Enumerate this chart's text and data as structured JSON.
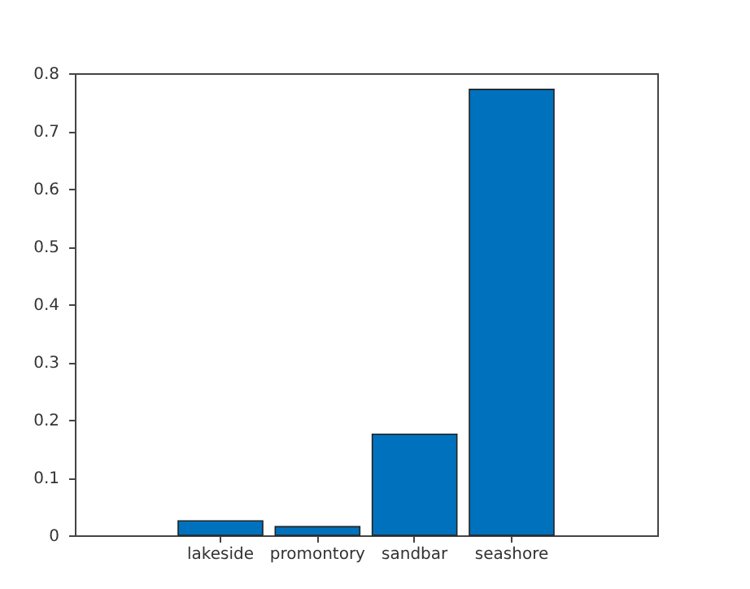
{
  "chart_data": {
    "type": "bar",
    "categories": [
      "lakeside",
      "promontory",
      "sandbar",
      "seashore"
    ],
    "values": [
      0.025,
      0.015,
      0.175,
      0.772
    ],
    "color": "#0072bd",
    "ylim": [
      0,
      0.8
    ],
    "yticks": [
      0,
      0.1,
      0.2,
      0.3,
      0.4,
      0.5,
      0.6,
      0.7,
      0.8
    ],
    "grid": false
  }
}
